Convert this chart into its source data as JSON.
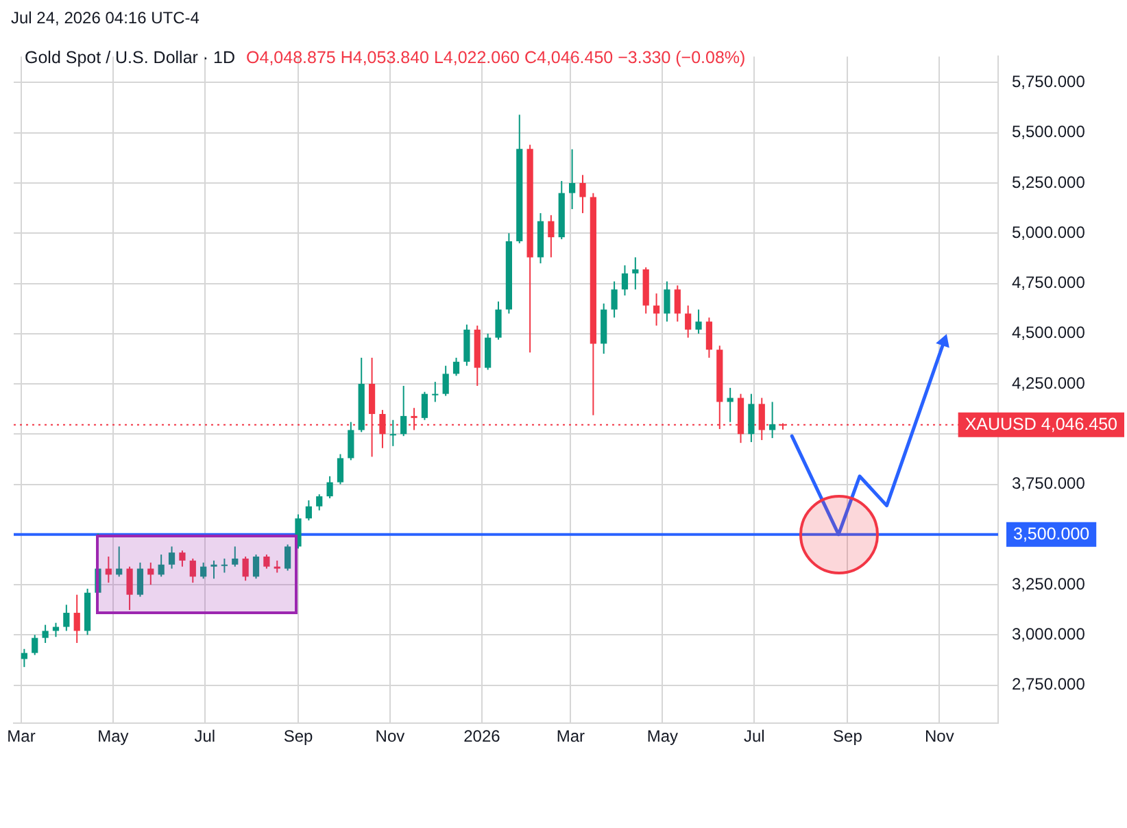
{
  "chart_data": {
    "type": "candlestick",
    "title": "Gold Spot / U.S. Dollar · 1D",
    "subtitle": "O4,048.875 H4,053.840 L4,022.060 C4,046.450 −3.330 (−0.08%)",
    "annotations": [
      "Jul 24, 2026 04:16 UTC-4"
    ],
    "x": [
      "2025-03-03",
      "2025-03-10",
      "2025-03-17",
      "2025-03-24",
      "2025-03-31",
      "2025-04-07",
      "2025-04-14",
      "2025-04-21",
      "2025-04-28",
      "2025-05-05",
      "2025-05-12",
      "2025-05-19",
      "2025-05-26",
      "2025-06-02",
      "2025-06-09",
      "2025-06-16",
      "2025-06-23",
      "2025-06-30",
      "2025-07-07",
      "2025-07-14",
      "2025-07-21",
      "2025-07-28",
      "2025-08-04",
      "2025-08-11",
      "2025-08-18",
      "2025-08-25",
      "2025-09-01",
      "2025-09-08",
      "2025-09-15",
      "2025-09-22",
      "2025-09-29",
      "2025-10-06",
      "2025-10-13",
      "2025-10-20",
      "2025-10-27",
      "2025-11-03",
      "2025-11-10",
      "2025-11-17",
      "2025-11-24",
      "2025-12-01",
      "2025-12-08",
      "2025-12-15",
      "2025-12-22",
      "2025-12-29",
      "2026-01-05",
      "2026-01-12",
      "2026-01-19",
      "2026-01-26",
      "2026-02-02",
      "2026-02-09",
      "2026-02-16",
      "2026-02-23",
      "2026-03-02",
      "2026-03-09",
      "2026-03-16",
      "2026-03-23",
      "2026-03-30",
      "2026-04-06",
      "2026-04-13",
      "2026-04-20",
      "2026-04-27",
      "2026-05-04",
      "2026-05-11",
      "2026-05-18",
      "2026-05-25",
      "2026-06-01",
      "2026-06-08",
      "2026-06-15",
      "2026-06-22",
      "2026-06-29",
      "2026-07-06",
      "2026-07-13",
      "2026-07-20"
    ],
    "ohlc": [
      [
        2880,
        2930,
        2840,
        2910
      ],
      [
        2910,
        3000,
        2900,
        2985
      ],
      [
        2985,
        3050,
        2960,
        3020
      ],
      [
        3020,
        3060,
        2990,
        3040
      ],
      [
        3040,
        3150,
        3020,
        3110
      ],
      [
        3110,
        3200,
        2960,
        3020
      ],
      [
        3020,
        3230,
        3000,
        3210
      ],
      [
        3210,
        3505,
        3200,
        3330
      ],
      [
        3330,
        3390,
        3260,
        3300
      ],
      [
        3300,
        3440,
        3290,
        3330
      ],
      [
        3330,
        3340,
        3124,
        3200
      ],
      [
        3200,
        3360,
        3190,
        3330
      ],
      [
        3330,
        3360,
        3250,
        3300
      ],
      [
        3300,
        3400,
        3290,
        3350
      ],
      [
        3350,
        3440,
        3330,
        3410
      ],
      [
        3410,
        3420,
        3340,
        3370
      ],
      [
        3370,
        3380,
        3260,
        3290
      ],
      [
        3290,
        3360,
        3280,
        3340
      ],
      [
        3340,
        3370,
        3280,
        3350
      ],
      [
        3350,
        3380,
        3310,
        3350
      ],
      [
        3350,
        3440,
        3340,
        3380
      ],
      [
        3380,
        3390,
        3270,
        3290
      ],
      [
        3290,
        3400,
        3280,
        3390
      ],
      [
        3390,
        3400,
        3330,
        3340
      ],
      [
        3340,
        3370,
        3310,
        3330
      ],
      [
        3330,
        3450,
        3320,
        3440
      ],
      [
        3440,
        3600,
        3430,
        3580
      ],
      [
        3580,
        3670,
        3570,
        3640
      ],
      [
        3640,
        3700,
        3620,
        3690
      ],
      [
        3690,
        3790,
        3680,
        3760
      ],
      [
        3760,
        3900,
        3750,
        3880
      ],
      [
        3880,
        4060,
        3870,
        4020
      ],
      [
        4020,
        4380,
        4010,
        4250
      ],
      [
        4250,
        4380,
        3887,
        4100
      ],
      [
        4100,
        4120,
        3930,
        4000
      ],
      [
        4000,
        4070,
        3940,
        4000
      ],
      [
        4000,
        4240,
        3990,
        4090
      ],
      [
        4090,
        4130,
        4020,
        4080
      ],
      [
        4080,
        4210,
        4070,
        4200
      ],
      [
        4200,
        4260,
        4160,
        4200
      ],
      [
        4200,
        4340,
        4190,
        4300
      ],
      [
        4300,
        4380,
        4290,
        4360
      ],
      [
        4360,
        4545,
        4340,
        4520
      ],
      [
        4520,
        4540,
        4240,
        4330
      ],
      [
        4330,
        4500,
        4320,
        4480
      ],
      [
        4480,
        4660,
        4470,
        4620
      ],
      [
        4620,
        5000,
        4600,
        4960
      ],
      [
        4960,
        5590,
        4950,
        5420
      ],
      [
        5420,
        5440,
        4406,
        4880
      ],
      [
        4880,
        5100,
        4850,
        5060
      ],
      [
        5060,
        5090,
        4880,
        4980
      ],
      [
        4980,
        5260,
        4970,
        5200
      ],
      [
        5200,
        5418,
        5120,
        5250
      ],
      [
        5250,
        5290,
        5100,
        5180
      ],
      [
        5180,
        5200,
        4094,
        4450
      ],
      [
        4450,
        4650,
        4400,
        4620
      ],
      [
        4620,
        4760,
        4580,
        4720
      ],
      [
        4720,
        4840,
        4690,
        4800
      ],
      [
        4800,
        4880,
        4720,
        4820
      ],
      [
        4820,
        4830,
        4600,
        4640
      ],
      [
        4640,
        4700,
        4540,
        4600
      ],
      [
        4600,
        4760,
        4560,
        4720
      ],
      [
        4720,
        4740,
        4560,
        4600
      ],
      [
        4600,
        4640,
        4480,
        4520
      ],
      [
        4520,
        4620,
        4500,
        4560
      ],
      [
        4560,
        4580,
        4380,
        4420
      ],
      [
        4420,
        4440,
        4025,
        4160
      ],
      [
        4160,
        4230,
        4060,
        4180
      ],
      [
        4180,
        4200,
        3956,
        4000
      ],
      [
        4000,
        4200,
        3960,
        4150
      ],
      [
        4150,
        4180,
        3970,
        4020
      ],
      [
        4020,
        4160,
        3980,
        4048.875
      ],
      [
        4048.875,
        4053.84,
        4022.06,
        4046.45
      ]
    ],
    "series": [
      {
        "type": "line",
        "color": "#2962ff",
        "x": [
          "2026-07-26",
          "2026-08-26",
          "2026-09-09",
          "2026-09-27",
          "2026-11-04"
        ],
        "values": [
          3990,
          3500,
          3790,
          3644,
          4460
        ]
      }
    ],
    "ref_lines": [
      {
        "axis": "y",
        "value": 3500,
        "label": "3,500.000",
        "color": "#2962ff",
        "line_style": "solid"
      },
      {
        "axis": "y",
        "value": 4046.45,
        "label": "XAUUSD 4,046.450",
        "color": "#f23645",
        "line_style": "dotted"
      }
    ],
    "xlim": [
      "2025-02-24",
      "2026-12-10"
    ],
    "xticks": [
      {
        "value": "2025-03-01",
        "label": "Mar"
      },
      {
        "value": "2025-05-01",
        "label": "May"
      },
      {
        "value": "2025-07-01",
        "label": "Jul"
      },
      {
        "value": "2025-09-01",
        "label": "Sep"
      },
      {
        "value": "2025-11-01",
        "label": "Nov"
      },
      {
        "value": "2026-01-01",
        "label": "2026"
      },
      {
        "value": "2026-03-01",
        "label": "Mar"
      },
      {
        "value": "2026-05-01",
        "label": "May"
      },
      {
        "value": "2026-07-01",
        "label": "Jul"
      },
      {
        "value": "2026-09-01",
        "label": "Sep"
      },
      {
        "value": "2026-11-01",
        "label": "Nov"
      }
    ],
    "ylim": [
      2560,
      5880
    ],
    "yticks": [
      {
        "value": 2750,
        "label": "2,750.000"
      },
      {
        "value": 3000,
        "label": "3,000.000"
      },
      {
        "value": 3250,
        "label": "3,250.000"
      },
      {
        "value": 3500,
        "label": null
      },
      {
        "value": 3750,
        "label": "3,750.000"
      },
      {
        "value": 4000,
        "label": null
      },
      {
        "value": 4250,
        "label": "4,250.000"
      },
      {
        "value": 4500,
        "label": "4,500.000"
      },
      {
        "value": 4750,
        "label": "4,750.000"
      },
      {
        "value": 5000,
        "label": "5,000.000"
      },
      {
        "value": 5250,
        "label": "5,250.000"
      },
      {
        "value": 5500,
        "label": "5,500.000"
      },
      {
        "value": 5750,
        "label": "5,750.000"
      }
    ],
    "grid": true
  }
}
